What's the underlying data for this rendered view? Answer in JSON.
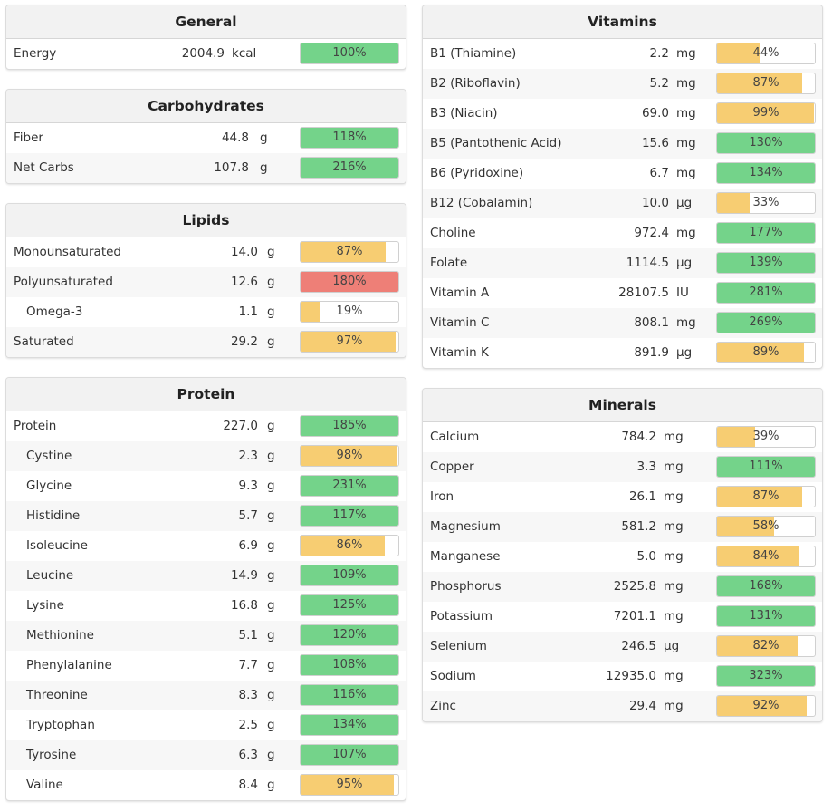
{
  "colors": {
    "green": "#74d38a",
    "yellow": "#f7cd72",
    "red": "#ee7f77"
  },
  "panels": [
    {
      "key": "general",
      "title": "General",
      "rows": [
        {
          "name": "Energy",
          "amount": "2004.9",
          "unit": "kcal",
          "pct": "100%",
          "value": 100,
          "color": "green"
        }
      ]
    },
    {
      "key": "carbohydrates",
      "title": "Carbohydrates",
      "rows": [
        {
          "name": "Fiber",
          "amount": "44.8",
          "unit": "g",
          "pct": "118%",
          "value": 118,
          "color": "green"
        },
        {
          "name": "Net Carbs",
          "amount": "107.8",
          "unit": "g",
          "pct": "216%",
          "value": 216,
          "color": "green"
        }
      ]
    },
    {
      "key": "lipids",
      "title": "Lipids",
      "rows": [
        {
          "name": "Monounsaturated",
          "amount": "14.0",
          "unit": "g",
          "pct": "87%",
          "value": 87,
          "color": "yellow"
        },
        {
          "name": "Polyunsaturated",
          "amount": "12.6",
          "unit": "g",
          "pct": "180%",
          "value": 180,
          "color": "red"
        },
        {
          "name": "Omega-3",
          "amount": "1.1",
          "unit": "g",
          "pct": "19%",
          "value": 19,
          "color": "yellow",
          "sub": true
        },
        {
          "name": "Saturated",
          "amount": "29.2",
          "unit": "g",
          "pct": "97%",
          "value": 97,
          "color": "yellow"
        }
      ]
    },
    {
      "key": "protein",
      "title": "Protein",
      "rows": [
        {
          "name": "Protein",
          "amount": "227.0",
          "unit": "g",
          "pct": "185%",
          "value": 185,
          "color": "green"
        },
        {
          "name": "Cystine",
          "amount": "2.3",
          "unit": "g",
          "pct": "98%",
          "value": 98,
          "color": "yellow",
          "sub": true
        },
        {
          "name": "Glycine",
          "amount": "9.3",
          "unit": "g",
          "pct": "231%",
          "value": 231,
          "color": "green",
          "sub": true
        },
        {
          "name": "Histidine",
          "amount": "5.7",
          "unit": "g",
          "pct": "117%",
          "value": 117,
          "color": "green",
          "sub": true
        },
        {
          "name": "Isoleucine",
          "amount": "6.9",
          "unit": "g",
          "pct": "86%",
          "value": 86,
          "color": "yellow",
          "sub": true
        },
        {
          "name": "Leucine",
          "amount": "14.9",
          "unit": "g",
          "pct": "109%",
          "value": 109,
          "color": "green",
          "sub": true
        },
        {
          "name": "Lysine",
          "amount": "16.8",
          "unit": "g",
          "pct": "125%",
          "value": 125,
          "color": "green",
          "sub": true
        },
        {
          "name": "Methionine",
          "amount": "5.1",
          "unit": "g",
          "pct": "120%",
          "value": 120,
          "color": "green",
          "sub": true
        },
        {
          "name": "Phenylalanine",
          "amount": "7.7",
          "unit": "g",
          "pct": "108%",
          "value": 108,
          "color": "green",
          "sub": true
        },
        {
          "name": "Threonine",
          "amount": "8.3",
          "unit": "g",
          "pct": "116%",
          "value": 116,
          "color": "green",
          "sub": true
        },
        {
          "name": "Tryptophan",
          "amount": "2.5",
          "unit": "g",
          "pct": "134%",
          "value": 134,
          "color": "green",
          "sub": true
        },
        {
          "name": "Tyrosine",
          "amount": "6.3",
          "unit": "g",
          "pct": "107%",
          "value": 107,
          "color": "green",
          "sub": true
        },
        {
          "name": "Valine",
          "amount": "8.4",
          "unit": "g",
          "pct": "95%",
          "value": 95,
          "color": "yellow",
          "sub": true
        }
      ]
    },
    {
      "key": "vitamins",
      "title": "Vitamins",
      "rows": [
        {
          "name": "B1 (Thiamine)",
          "amount": "2.2",
          "unit": "mg",
          "pct": "44%",
          "value": 44,
          "color": "yellow"
        },
        {
          "name": "B2 (Riboflavin)",
          "amount": "5.2",
          "unit": "mg",
          "pct": "87%",
          "value": 87,
          "color": "yellow"
        },
        {
          "name": "B3 (Niacin)",
          "amount": "69.0",
          "unit": "mg",
          "pct": "99%",
          "value": 99,
          "color": "yellow"
        },
        {
          "name": "B5 (Pantothenic Acid)",
          "amount": "15.6",
          "unit": "mg",
          "pct": "130%",
          "value": 130,
          "color": "green"
        },
        {
          "name": "B6 (Pyridoxine)",
          "amount": "6.7",
          "unit": "mg",
          "pct": "134%",
          "value": 134,
          "color": "green"
        },
        {
          "name": "B12 (Cobalamin)",
          "amount": "10.0",
          "unit": "µg",
          "pct": "33%",
          "value": 33,
          "color": "yellow"
        },
        {
          "name": "Choline",
          "amount": "972.4",
          "unit": "mg",
          "pct": "177%",
          "value": 177,
          "color": "green"
        },
        {
          "name": "Folate",
          "amount": "1114.5",
          "unit": "µg",
          "pct": "139%",
          "value": 139,
          "color": "green"
        },
        {
          "name": "Vitamin A",
          "amount": "28107.5",
          "unit": "IU",
          "pct": "281%",
          "value": 281,
          "color": "green"
        },
        {
          "name": "Vitamin C",
          "amount": "808.1",
          "unit": "mg",
          "pct": "269%",
          "value": 269,
          "color": "green"
        },
        {
          "name": "Vitamin K",
          "amount": "891.9",
          "unit": "µg",
          "pct": "89%",
          "value": 89,
          "color": "yellow"
        }
      ]
    },
    {
      "key": "minerals",
      "title": "Minerals",
      "rows": [
        {
          "name": "Calcium",
          "amount": "784.2",
          "unit": "mg",
          "pct": "39%",
          "value": 39,
          "color": "yellow"
        },
        {
          "name": "Copper",
          "amount": "3.3",
          "unit": "mg",
          "pct": "111%",
          "value": 111,
          "color": "green"
        },
        {
          "name": "Iron",
          "amount": "26.1",
          "unit": "mg",
          "pct": "87%",
          "value": 87,
          "color": "yellow"
        },
        {
          "name": "Magnesium",
          "amount": "581.2",
          "unit": "mg",
          "pct": "58%",
          "value": 58,
          "color": "yellow"
        },
        {
          "name": "Manganese",
          "amount": "5.0",
          "unit": "mg",
          "pct": "84%",
          "value": 84,
          "color": "yellow"
        },
        {
          "name": "Phosphorus",
          "amount": "2525.8",
          "unit": "mg",
          "pct": "168%",
          "value": 168,
          "color": "green"
        },
        {
          "name": "Potassium",
          "amount": "7201.1",
          "unit": "mg",
          "pct": "131%",
          "value": 131,
          "color": "green"
        },
        {
          "name": "Selenium",
          "amount": "246.5",
          "unit": "µg",
          "pct": "82%",
          "value": 82,
          "color": "yellow"
        },
        {
          "name": "Sodium",
          "amount": "12935.0",
          "unit": "mg",
          "pct": "323%",
          "value": 323,
          "color": "green"
        },
        {
          "name": "Zinc",
          "amount": "29.4",
          "unit": "mg",
          "pct": "92%",
          "value": 92,
          "color": "yellow"
        }
      ]
    }
  ]
}
